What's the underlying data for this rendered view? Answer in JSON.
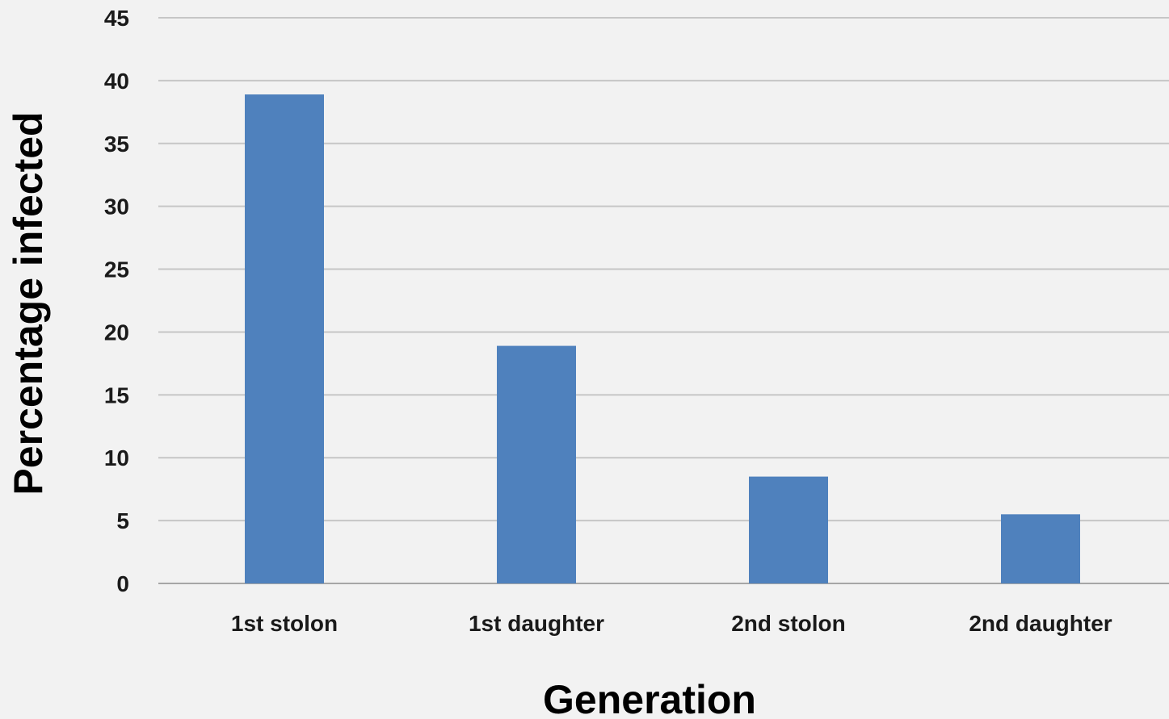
{
  "chart_data": {
    "type": "bar",
    "title": "",
    "xlabel": "Generation",
    "ylabel": "Percentage infected",
    "categories": [
      "1st stolon",
      "1st daughter",
      "2nd stolon",
      "2nd daughter"
    ],
    "values": [
      38.9,
      18.9,
      8.5,
      5.5
    ],
    "ylim": [
      0,
      45
    ],
    "yticks": [
      0,
      5,
      10,
      15,
      20,
      25,
      30,
      35,
      40,
      45
    ],
    "ytick_labels": [
      "0",
      "5",
      "10",
      "15",
      "20",
      "25",
      "30",
      "35",
      "40",
      "45"
    ],
    "grid": true,
    "legend": "none"
  },
  "colors": {
    "background": "#f2f2f2",
    "bar": "#4f81bd",
    "gridline": "#c6c6c6",
    "axis_line": "#a6a6a6",
    "text": "#1a1a1a"
  }
}
